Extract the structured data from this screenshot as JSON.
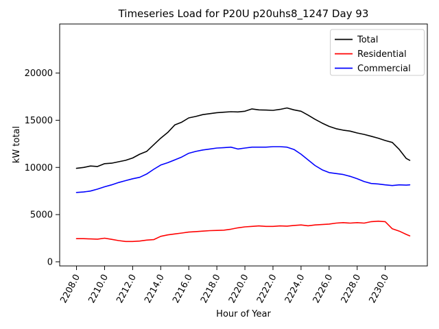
{
  "window": {
    "background": "#ffffff"
  },
  "chart_data": {
    "type": "line",
    "title": "Timeseries Load for P20U p20uhs8_1247  Day 93",
    "xlabel": "Hour of Year",
    "ylabel": "kW total",
    "grid": false,
    "xlim": [
      2206.8,
      2233.0
    ],
    "ylim": [
      -440,
      25200
    ],
    "xtick_values": [
      2208,
      2210,
      2212,
      2214,
      2216,
      2218,
      2220,
      2222,
      2224,
      2226,
      2228,
      2230
    ],
    "xtick_labels": [
      "2208.0",
      "2210.0",
      "2212.0",
      "2214.0",
      "2216.0",
      "2218.0",
      "2220.0",
      "2222.0",
      "2224.0",
      "2226.0",
      "2228.0",
      "2230.0"
    ],
    "ytick_values": [
      0,
      5000,
      10000,
      15000,
      20000
    ],
    "ytick_labels": [
      "0",
      "5000",
      "10000",
      "15000",
      "20000"
    ],
    "legend": {
      "position": "upper right",
      "border_color": "#cccccc",
      "background": "#ffffff",
      "entries": [
        "Total",
        "Residential",
        "Commercial"
      ]
    },
    "x": [
      2208,
      2208.5,
      2209,
      2209.5,
      2210,
      2210.5,
      2211,
      2211.5,
      2212,
      2212.5,
      2213,
      2213.5,
      2214,
      2214.5,
      2215,
      2215.5,
      2216,
      2216.5,
      2217,
      2217.5,
      2218,
      2218.5,
      2219,
      2219.5,
      2220,
      2220.5,
      2221,
      2221.5,
      2222,
      2222.5,
      2223,
      2223.5,
      2224,
      2224.5,
      2225,
      2225.5,
      2226,
      2226.5,
      2227,
      2227.5,
      2228,
      2228.5,
      2229,
      2229.5,
      2230,
      2230.5,
      2231,
      2231.5,
      2231.75
    ],
    "series": [
      {
        "name": "Total",
        "color": "#000000",
        "values": [
          9900,
          10000,
          10150,
          10100,
          10400,
          10450,
          10600,
          10750,
          11000,
          11400,
          11700,
          12400,
          13100,
          13700,
          14500,
          14800,
          15250,
          15400,
          15600,
          15700,
          15800,
          15850,
          15900,
          15880,
          15950,
          16200,
          16100,
          16080,
          16050,
          16150,
          16300,
          16100,
          15950,
          15550,
          15100,
          14700,
          14350,
          14100,
          13950,
          13850,
          13650,
          13500,
          13300,
          13100,
          12850,
          12650,
          11900,
          10950,
          10750
        ]
      },
      {
        "name": "Residential",
        "color": "#ff0000",
        "values": [
          2450,
          2450,
          2420,
          2400,
          2500,
          2380,
          2250,
          2150,
          2150,
          2200,
          2300,
          2350,
          2700,
          2850,
          2950,
          3050,
          3150,
          3200,
          3250,
          3300,
          3320,
          3350,
          3450,
          3600,
          3700,
          3750,
          3800,
          3750,
          3750,
          3800,
          3780,
          3850,
          3900,
          3820,
          3900,
          3950,
          4000,
          4100,
          4150,
          4100,
          4150,
          4100,
          4250,
          4300,
          4250,
          3500,
          3250,
          2900,
          2750
        ]
      },
      {
        "name": "Commercial",
        "color": "#0000ff",
        "values": [
          7350,
          7400,
          7500,
          7700,
          7950,
          8150,
          8400,
          8600,
          8800,
          8950,
          9300,
          9800,
          10250,
          10500,
          10800,
          11100,
          11500,
          11700,
          11850,
          11950,
          12050,
          12100,
          12150,
          11950,
          12050,
          12150,
          12150,
          12150,
          12200,
          12200,
          12150,
          11900,
          11400,
          10800,
          10200,
          9750,
          9450,
          9350,
          9250,
          9050,
          8800,
          8500,
          8300,
          8250,
          8150,
          8080,
          8150,
          8120,
          8150
        ]
      }
    ]
  }
}
